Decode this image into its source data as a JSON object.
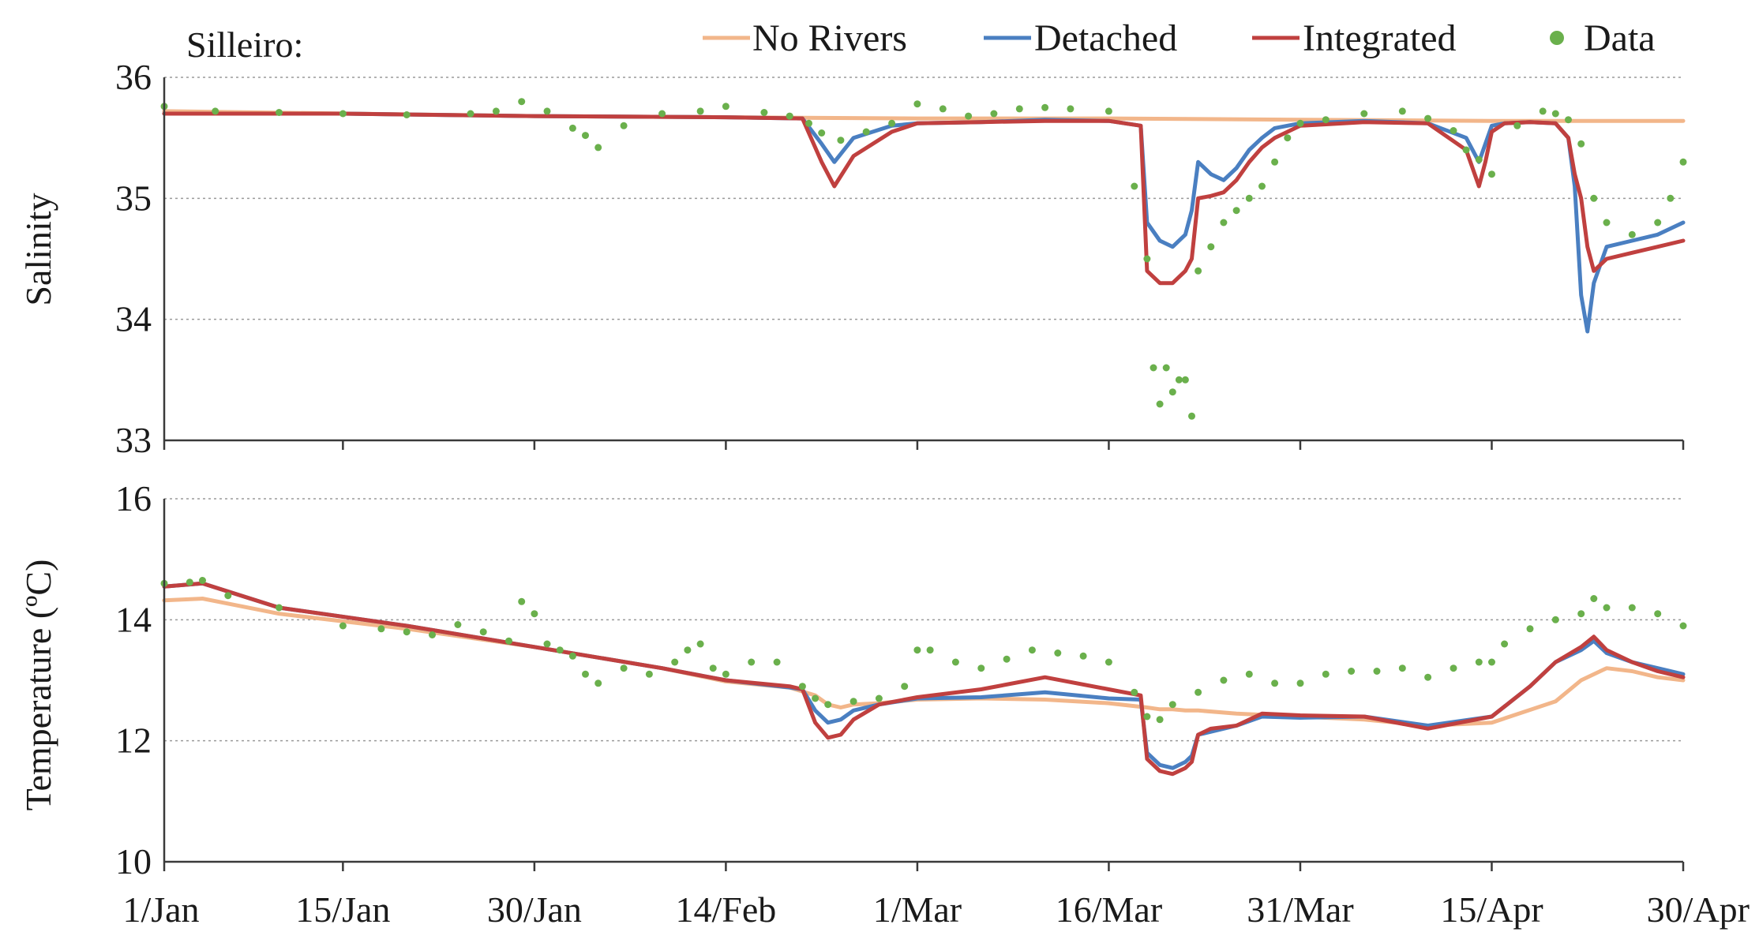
{
  "chart_data": {
    "type": "line",
    "station_label": "Silleiro:",
    "legend": [
      {
        "label": "No Rivers",
        "color": "#f2b68a",
        "kind": "line"
      },
      {
        "label": "Detached",
        "color": "#4a7fc1",
        "kind": "line"
      },
      {
        "label": "Integrated",
        "color": "#c0403f",
        "kind": "line"
      },
      {
        "label": "Data",
        "color": "#6ab04c",
        "kind": "dots"
      }
    ],
    "legend_placement": "top",
    "grid": true,
    "x_axis": {
      "ticks": [
        "1/Jan",
        "15/Jan",
        "30/Jan",
        "14/Feb",
        "1/Mar",
        "16/Mar",
        "31/Mar",
        "15/Apr",
        "30/Apr"
      ],
      "tick_day_of_year": [
        1,
        15,
        30,
        45,
        60,
        75,
        90,
        105,
        120
      ],
      "range": [
        1,
        120
      ]
    },
    "panels": [
      {
        "name": "salinity",
        "ylabel": "Salinity",
        "ylim": [
          33,
          36
        ],
        "yticks": [
          "33",
          "34",
          "35",
          "36"
        ],
        "series": [
          {
            "name": "No Rivers",
            "color": "#f2b68a",
            "x": [
              1,
              30,
              60,
              75,
              90,
              105,
              110,
              120
            ],
            "y": [
              35.72,
              35.68,
              35.66,
              35.66,
              35.65,
              35.64,
              35.64,
              35.64
            ]
          },
          {
            "name": "Detached",
            "color": "#4a7fc1",
            "x": [
              1,
              15,
              30,
              45,
              51,
              52.5,
              53.5,
              55,
              58,
              60,
              65,
              70,
              75,
              77.5,
              78,
              79,
              80,
              81,
              81.5,
              82,
              83,
              84,
              85,
              86,
              87,
              88,
              89,
              90,
              95,
              100,
              103,
              104,
              104.5,
              105,
              106,
              108,
              110,
              111,
              111.5,
              112,
              112.5,
              113,
              114,
              116,
              118,
              120
            ],
            "y": [
              35.7,
              35.7,
              35.68,
              35.67,
              35.66,
              35.45,
              35.3,
              35.5,
              35.6,
              35.62,
              35.63,
              35.65,
              35.64,
              35.6,
              34.8,
              34.65,
              34.6,
              34.7,
              34.9,
              35.3,
              35.2,
              35.15,
              35.25,
              35.4,
              35.5,
              35.58,
              35.6,
              35.62,
              35.64,
              35.62,
              35.5,
              35.3,
              35.45,
              35.6,
              35.62,
              35.63,
              35.62,
              35.5,
              35.1,
              34.2,
              33.9,
              34.3,
              34.6,
              34.65,
              34.7,
              34.8
            ]
          },
          {
            "name": "Integrated",
            "color": "#c0403f",
            "x": [
              1,
              15,
              30,
              45,
              51,
              52.5,
              53.5,
              55,
              58,
              60,
              65,
              70,
              75,
              77.5,
              78,
              79,
              80,
              81,
              81.5,
              82,
              83,
              84,
              85,
              86,
              87,
              88,
              89,
              90,
              95,
              100,
              103,
              104,
              104.5,
              105,
              106,
              108,
              110,
              111,
              111.5,
              112,
              112.5,
              113,
              114,
              116,
              118,
              120
            ],
            "y": [
              35.7,
              35.7,
              35.68,
              35.67,
              35.66,
              35.3,
              35.1,
              35.35,
              35.55,
              35.62,
              35.63,
              35.64,
              35.64,
              35.6,
              34.4,
              34.3,
              34.3,
              34.4,
              34.5,
              35.0,
              35.02,
              35.05,
              35.15,
              35.3,
              35.42,
              35.5,
              35.55,
              35.6,
              35.63,
              35.62,
              35.4,
              35.1,
              35.3,
              35.55,
              35.62,
              35.63,
              35.62,
              35.5,
              35.2,
              35.0,
              34.6,
              34.4,
              34.5,
              34.55,
              34.6,
              34.65
            ]
          },
          {
            "name": "Data",
            "color": "#6ab04c",
            "kind": "dots",
            "x": [
              1,
              5,
              10,
              15,
              20,
              25,
              27,
              29,
              31,
              33,
              34,
              35,
              37,
              40,
              43,
              45,
              48,
              50,
              51.5,
              52.5,
              54,
              56,
              58,
              60,
              62,
              64,
              66,
              68,
              70,
              72,
              75,
              77,
              78,
              78.5,
              79,
              79.5,
              80,
              80.5,
              81,
              81.5,
              82,
              83,
              84,
              85,
              86,
              87,
              88,
              89,
              90,
              92,
              95,
              98,
              100,
              102,
              103,
              104,
              105,
              107,
              109,
              110,
              111,
              112,
              113,
              114,
              116,
              118,
              119,
              120
            ],
            "y": [
              35.76,
              35.72,
              35.71,
              35.7,
              35.69,
              35.7,
              35.72,
              35.8,
              35.72,
              35.58,
              35.52,
              35.42,
              35.6,
              35.7,
              35.72,
              35.76,
              35.71,
              35.68,
              35.62,
              35.54,
              35.48,
              35.55,
              35.62,
              35.78,
              35.74,
              35.68,
              35.7,
              35.74,
              35.75,
              35.74,
              35.72,
              35.1,
              34.5,
              33.6,
              33.3,
              33.6,
              33.4,
              33.5,
              33.5,
              33.2,
              34.4,
              34.6,
              34.8,
              34.9,
              35.0,
              35.1,
              35.3,
              35.5,
              35.62,
              35.65,
              35.7,
              35.72,
              35.66,
              35.56,
              35.4,
              35.32,
              35.2,
              35.6,
              35.72,
              35.7,
              35.65,
              35.45,
              35.0,
              34.8,
              34.7,
              34.8,
              35.0,
              35.3
            ]
          }
        ]
      },
      {
        "name": "temperature",
        "ylabel": "Temperature (ºC)",
        "ylim": [
          10,
          16
        ],
        "yticks": [
          "10",
          "12",
          "14",
          "16"
        ],
        "series": [
          {
            "name": "No Rivers",
            "color": "#f2b68a",
            "x": [
              1,
              4,
              10,
              20,
              30,
              40,
              45,
              50,
              52,
              53,
              54,
              55,
              57,
              60,
              65,
              70,
              75,
              78,
              79,
              80,
              81,
              82,
              85,
              90,
              95,
              100,
              105,
              110,
              112,
              114,
              116,
              118,
              120
            ],
            "y": [
              14.32,
              14.35,
              14.1,
              13.85,
              13.55,
              13.2,
              12.98,
              12.88,
              12.75,
              12.6,
              12.55,
              12.6,
              12.62,
              12.68,
              12.7,
              12.68,
              12.62,
              12.55,
              12.52,
              12.52,
              12.5,
              12.5,
              12.45,
              12.4,
              12.35,
              12.25,
              12.3,
              12.65,
              13.0,
              13.2,
              13.15,
              13.05,
              13.0
            ]
          },
          {
            "name": "Detached",
            "color": "#4a7fc1",
            "x": [
              1,
              4,
              10,
              20,
              30,
              40,
              45,
              50,
              51,
              52,
              53,
              54,
              55,
              57,
              60,
              65,
              70,
              75,
              77.5,
              78,
              79,
              80,
              81,
              81.5,
              82,
              83,
              85,
              87,
              90,
              95,
              100,
              105,
              108,
              110,
              112,
              113,
              114,
              116,
              118,
              120
            ],
            "y": [
              14.55,
              14.6,
              14.2,
              13.9,
              13.55,
              13.2,
              13.0,
              12.88,
              12.85,
              12.5,
              12.3,
              12.35,
              12.5,
              12.6,
              12.7,
              12.72,
              12.8,
              12.7,
              12.68,
              11.8,
              11.6,
              11.55,
              11.65,
              11.75,
              12.1,
              12.15,
              12.25,
              12.4,
              12.38,
              12.4,
              12.25,
              12.4,
              12.9,
              13.3,
              13.5,
              13.65,
              13.45,
              13.3,
              13.2,
              13.1
            ]
          },
          {
            "name": "Integrated",
            "color": "#c0403f",
            "x": [
              1,
              4,
              10,
              20,
              30,
              40,
              45,
              50,
              51,
              52,
              53,
              54,
              55,
              57,
              60,
              65,
              70,
              75,
              77.5,
              78,
              79,
              80,
              81,
              81.5,
              82,
              83,
              85,
              87,
              90,
              95,
              100,
              105,
              108,
              110,
              112,
              113,
              114,
              116,
              118,
              120
            ],
            "y": [
              14.55,
              14.6,
              14.2,
              13.9,
              13.55,
              13.2,
              13.0,
              12.9,
              12.85,
              12.3,
              12.05,
              12.1,
              12.35,
              12.6,
              12.72,
              12.85,
              13.05,
              12.85,
              12.75,
              11.7,
              11.5,
              11.45,
              11.55,
              11.65,
              12.1,
              12.2,
              12.25,
              12.45,
              12.42,
              12.4,
              12.2,
              12.4,
              12.9,
              13.3,
              13.55,
              13.72,
              13.5,
              13.3,
              13.15,
              13.05
            ]
          },
          {
            "name": "Data",
            "color": "#6ab04c",
            "kind": "dots",
            "x": [
              1,
              3,
              4,
              6,
              10,
              15,
              18,
              20,
              22,
              24,
              26,
              28,
              29,
              30,
              31,
              32,
              33,
              34,
              35,
              37,
              39,
              41,
              42,
              43,
              44,
              45,
              47,
              49,
              51,
              52,
              53,
              55,
              57,
              59,
              60,
              61,
              63,
              65,
              67,
              69,
              71,
              73,
              75,
              77,
              78,
              79,
              80,
              82,
              84,
              86,
              88,
              90,
              92,
              94,
              96,
              98,
              100,
              102,
              104,
              105,
              106,
              108,
              110,
              112,
              113,
              114,
              116,
              118,
              120
            ],
            "y": [
              14.6,
              14.62,
              14.65,
              14.4,
              14.2,
              13.9,
              13.85,
              13.8,
              13.75,
              13.92,
              13.8,
              13.65,
              14.3,
              14.1,
              13.6,
              13.5,
              13.4,
              13.1,
              12.95,
              13.2,
              13.1,
              13.3,
              13.5,
              13.6,
              13.2,
              13.1,
              13.3,
              13.3,
              12.9,
              12.7,
              12.6,
              12.65,
              12.7,
              12.9,
              13.5,
              13.5,
              13.3,
              13.2,
              13.35,
              13.5,
              13.45,
              13.4,
              13.3,
              12.8,
              12.4,
              12.35,
              12.6,
              12.8,
              13.0,
              13.1,
              12.95,
              12.95,
              13.1,
              13.15,
              13.15,
              13.2,
              13.05,
              13.2,
              13.3,
              13.3,
              13.6,
              13.85,
              14.0,
              14.1,
              14.35,
              14.2,
              14.2,
              14.1,
              13.9
            ]
          }
        ]
      }
    ]
  }
}
